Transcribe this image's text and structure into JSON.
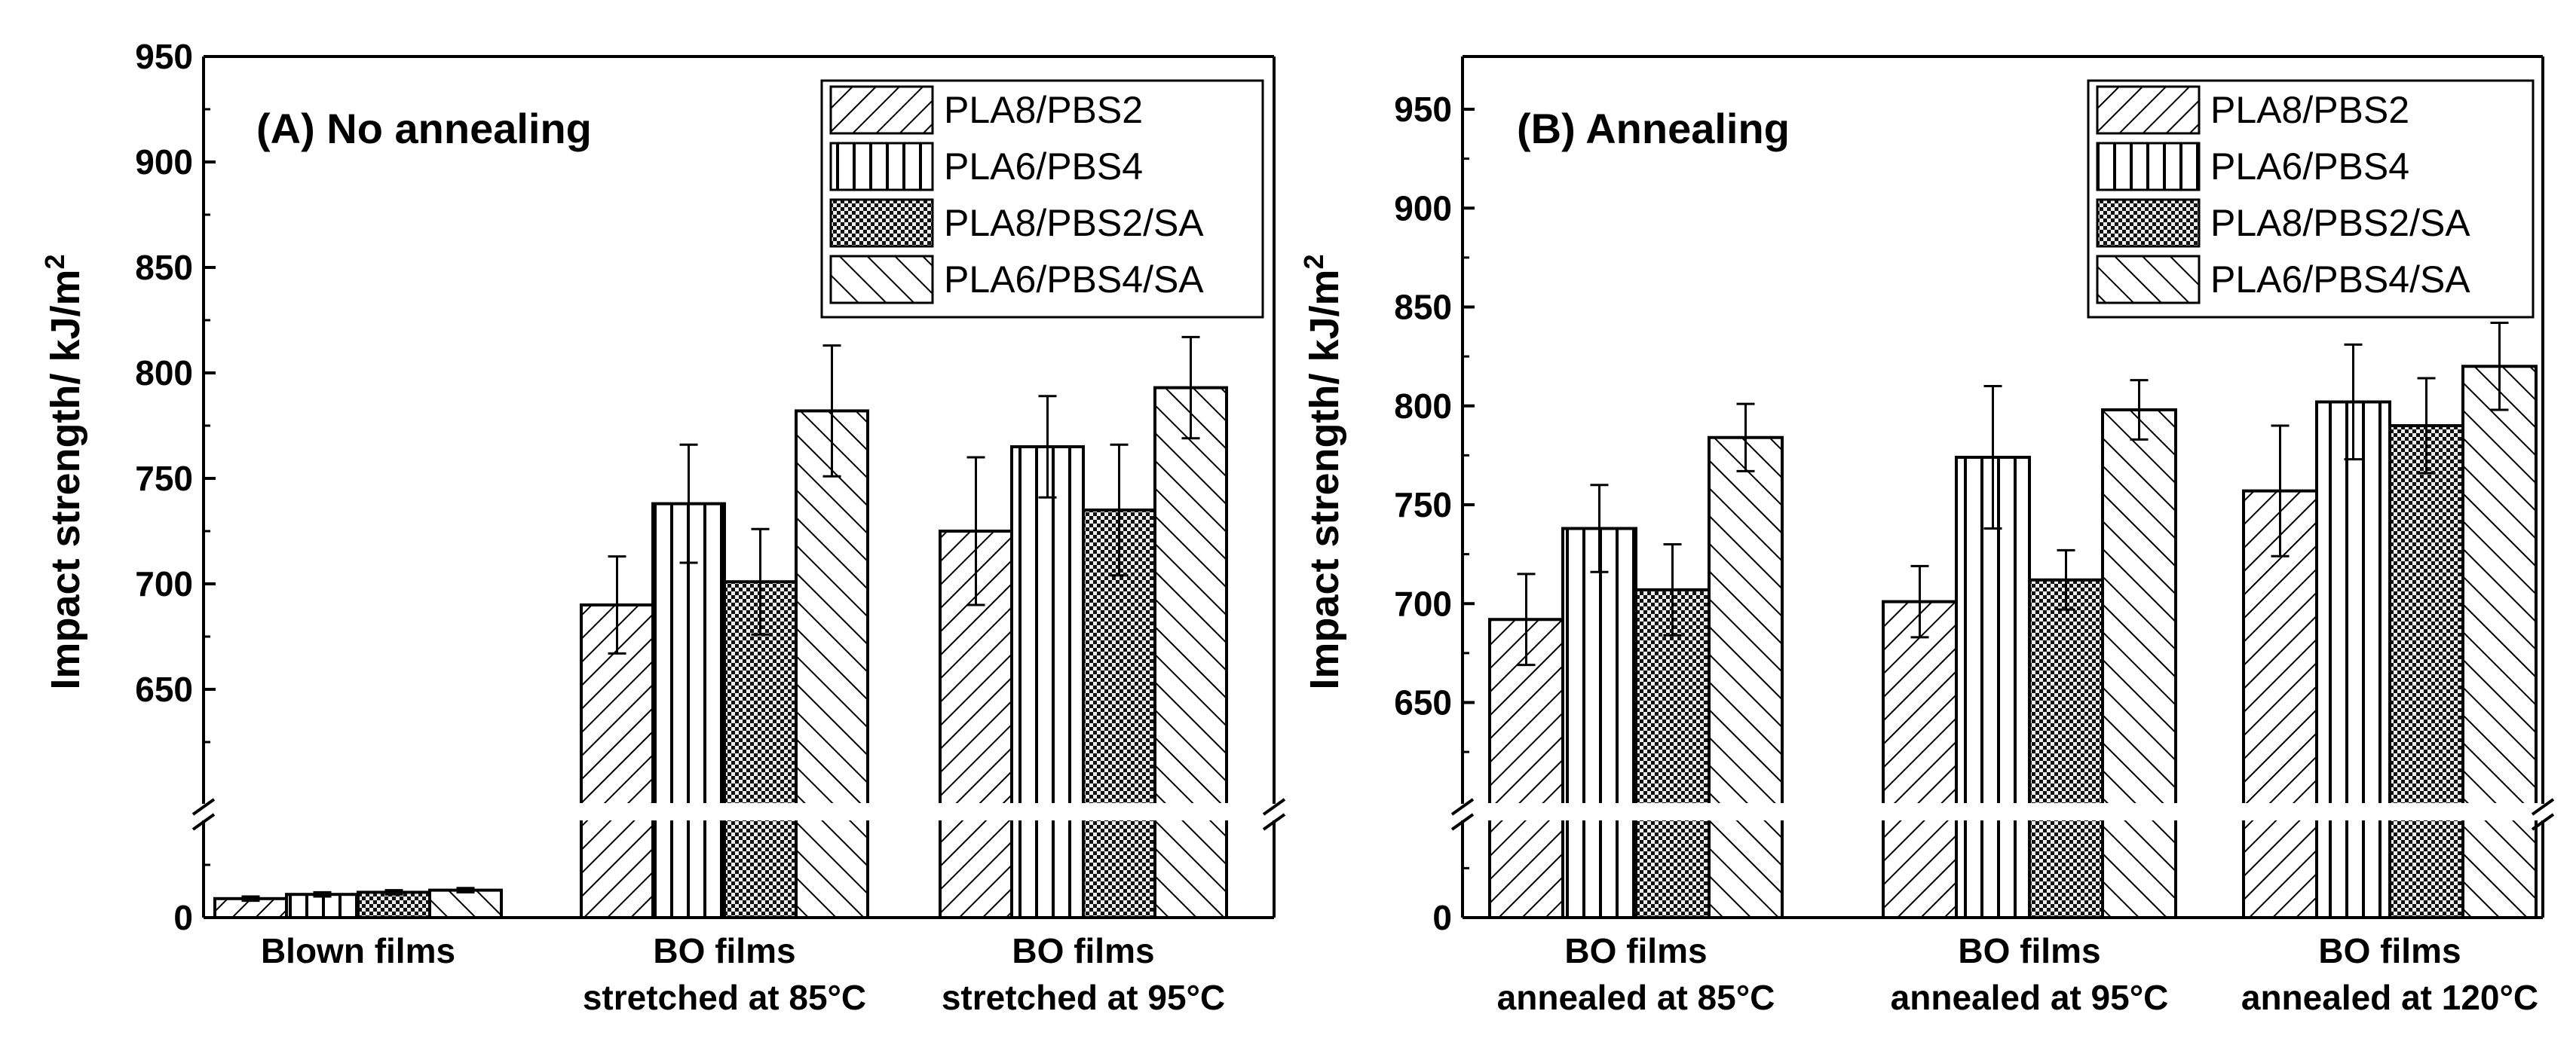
{
  "chart_data": [
    {
      "type": "bar",
      "title": "(A) No annealing",
      "xlabel": "",
      "ylabel": "Impact strength/ kJ/m²",
      "y_axis_break": true,
      "y_ticks_upper": [
        "650",
        "700",
        "750",
        "800",
        "850",
        "900",
        "950"
      ],
      "y_ticks_lower": [
        "0"
      ],
      "ylim_upper": [
        600,
        950
      ],
      "ylim_lower": [
        0,
        50
      ],
      "categories": [
        [
          "Blown films"
        ],
        [
          "BO films",
          "stretched at 85°C"
        ],
        [
          "BO films",
          "stretched at 95°C"
        ]
      ],
      "legend_position": "top-right",
      "series": [
        {
          "name": "PLA8/PBS2",
          "pattern": "diag-right",
          "values": [
            9,
            690,
            725
          ],
          "errors": [
            1,
            23,
            35
          ]
        },
        {
          "name": "PLA6/PBS4",
          "pattern": "vertical",
          "values": [
            11,
            738,
            765
          ],
          "errors": [
            1,
            28,
            24
          ]
        },
        {
          "name": "PLA8/PBS2/SA",
          "pattern": "crosshatch",
          "values": [
            12,
            701,
            735
          ],
          "errors": [
            1,
            25,
            31
          ]
        },
        {
          "name": "PLA6/PBS4/SA",
          "pattern": "diag-left",
          "values": [
            13,
            782,
            793
          ],
          "errors": [
            1,
            31,
            24
          ]
        }
      ]
    },
    {
      "type": "bar",
      "title": "(B) Annealing",
      "xlabel": "",
      "ylabel": "Impact strength/ kJ/m²",
      "y_axis_break": true,
      "y_ticks_upper": [
        "650",
        "700",
        "750",
        "800",
        "850",
        "900",
        "950"
      ],
      "y_ticks_lower": [
        "0"
      ],
      "ylim_upper": [
        600,
        975
      ],
      "ylim_lower": [
        0,
        50
      ],
      "categories": [
        [
          "BO films",
          "annealed at 85°C"
        ],
        [
          "BO films",
          "annealed at 95°C"
        ],
        [
          "BO films",
          "annealed at 120°C"
        ]
      ],
      "legend_position": "top-right",
      "series": [
        {
          "name": "PLA8/PBS2",
          "pattern": "diag-right",
          "values": [
            692,
            701,
            757
          ],
          "errors": [
            23,
            18,
            33
          ]
        },
        {
          "name": "PLA6/PBS4",
          "pattern": "vertical",
          "values": [
            738,
            774,
            802
          ],
          "errors": [
            22,
            36,
            29
          ]
        },
        {
          "name": "PLA8/PBS2/SA",
          "pattern": "crosshatch",
          "values": [
            707,
            712,
            790
          ],
          "errors": [
            23,
            15,
            24
          ]
        },
        {
          "name": "PLA6/PBS4/SA",
          "pattern": "diag-left",
          "values": [
            784,
            798,
            820
          ],
          "errors": [
            17,
            15,
            22
          ]
        }
      ]
    }
  ]
}
